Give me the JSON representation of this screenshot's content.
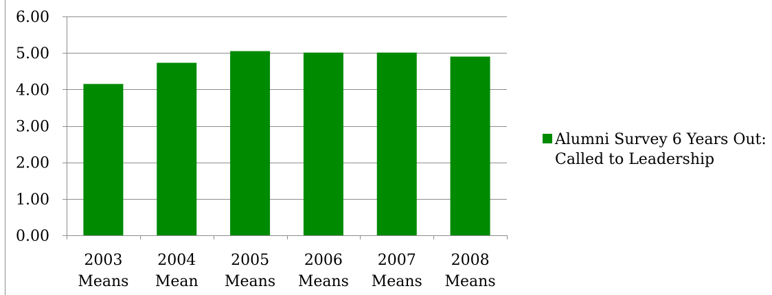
{
  "chart_data": {
    "type": "bar",
    "categories": [
      [
        "2003",
        "Means"
      ],
      [
        "2004",
        "Mean"
      ],
      [
        "2005",
        "Means"
      ],
      [
        "2006",
        "Means"
      ],
      [
        "2007",
        "Means"
      ],
      [
        "2008",
        "Means"
      ]
    ],
    "series": [
      {
        "name": [
          "Alumni Survey 6 Years Out:",
          "Called to Leadership"
        ],
        "color": "#008a00",
        "values": [
          4.15,
          4.73,
          5.05,
          5.01,
          5.01,
          4.9
        ]
      }
    ],
    "ylim": [
      0,
      6
    ],
    "yticks": [
      "0.00",
      "1.00",
      "2.00",
      "3.00",
      "4.00",
      "5.00",
      "6.00"
    ],
    "grid": true,
    "legend_position": "right"
  }
}
